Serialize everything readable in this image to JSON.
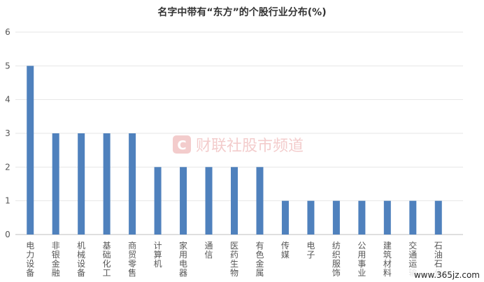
{
  "chart_data": {
    "type": "bar",
    "title": "名字中带有“东方”的个股行业分布(%)",
    "xlabel": "",
    "ylabel": "",
    "ylim": [
      0,
      6
    ],
    "yticks": [
      0,
      1,
      2,
      3,
      4,
      5,
      6
    ],
    "grid": true,
    "legend": "none",
    "bar_color": "#4f81bd",
    "categories": [
      "电力设备",
      "非银金融",
      "机械设备",
      "基础化工",
      "商贸零售",
      "计算机",
      "家用电器",
      "通信",
      "医药生物",
      "有色金属",
      "传媒",
      "电子",
      "纺织服饰",
      "公用事业",
      "建筑材料",
      "交通运输",
      "石油石化"
    ],
    "values": [
      5,
      3,
      3,
      3,
      3,
      2,
      2,
      2,
      2,
      2,
      1,
      1,
      1,
      1,
      1,
      1,
      1
    ]
  },
  "watermark": {
    "text": "财联社股市频道",
    "logo_letter": "C",
    "color": "#e05555"
  },
  "site_mark": "www.365jz.com"
}
